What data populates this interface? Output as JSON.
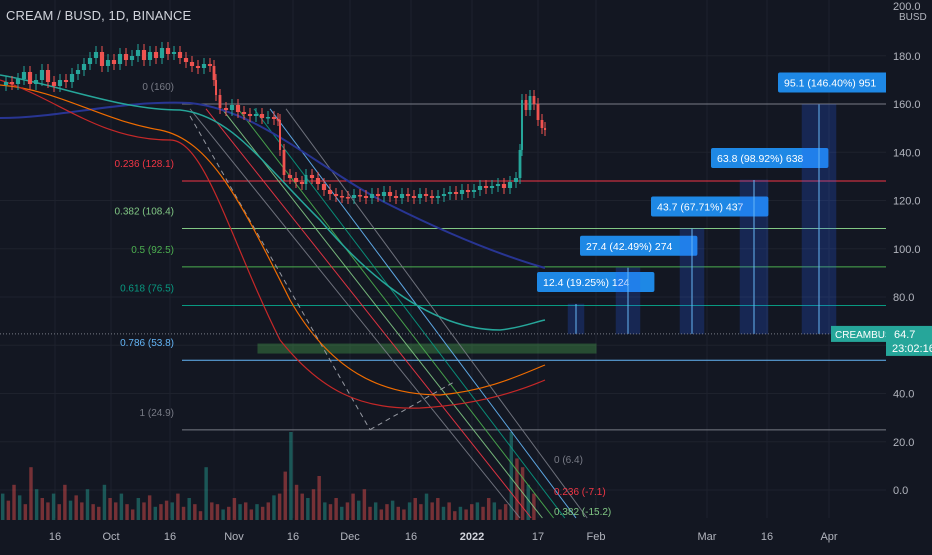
{
  "header": {
    "symbol_title": "CREAM / BUSD, 1D, BINANCE",
    "currency": "BUSD"
  },
  "chart_data": {
    "type": "candlestick",
    "title": "CREAM / BUSD, 1D, BINANCE",
    "symbol": "CREAMBUSD",
    "last_price": "64.7",
    "countdown": "23:02:16",
    "y_ticks": [
      "0.0",
      "20.0",
      "40.0",
      "60.0",
      "80.0",
      "100.0",
      "120.0",
      "140.0",
      "160.0",
      "180.0"
    ],
    "y_top_partial": "200.0",
    "ylim": [
      -3,
      203
    ],
    "x_ticks": [
      "16",
      "Oct",
      "16",
      "Nov",
      "16",
      "Dec",
      "16",
      "2022",
      "17",
      "Feb",
      "Mar",
      "16",
      "Apr"
    ],
    "fib_retracement": [
      {
        "label": "0 (160)",
        "value": 160,
        "color": "#787b86"
      },
      {
        "label": "0.236 (128.1)",
        "value": 128.1,
        "color": "#f23645"
      },
      {
        "label": "0.382 (108.4)",
        "value": 108.4,
        "color": "#81c784"
      },
      {
        "label": "0.5 (92.5)",
        "value": 92.5,
        "color": "#4caf50"
      },
      {
        "label": "0.618 (76.5)",
        "value": 76.5,
        "color": "#089981"
      },
      {
        "label": "0.786 (53.8)",
        "value": 53.8,
        "color": "#64b5f6"
      },
      {
        "label": "1 (24.9)",
        "value": 24.9,
        "color": "#787b86"
      }
    ],
    "fib_channel_labels": [
      {
        "label": "0 (6.4)",
        "color": "#787b86"
      },
      {
        "label": "0.236 (-7.1)",
        "color": "#f23645"
      },
      {
        "label": "0.382 (-15.2)",
        "color": "#81c784"
      }
    ],
    "targets": [
      {
        "label": "12.4 (19.25%) 124",
        "base": 64.7,
        "top": 77.1
      },
      {
        "label": "27.4 (42.49%) 274",
        "base": 64.7,
        "top": 92.1
      },
      {
        "label": "43.7 (67.71%) 437",
        "base": 64.7,
        "top": 108.4
      },
      {
        "label": "63.8 (98.92%) 638",
        "base": 64.7,
        "top": 128.5
      },
      {
        "label": "95.1 (146.40%) 951",
        "base": 64.7,
        "top": 159.8
      }
    ],
    "price_series": [
      [
        0,
        85
      ],
      [
        6,
        82
      ],
      [
        12,
        84
      ],
      [
        18,
        79
      ],
      [
        24,
        72
      ],
      [
        30,
        84
      ],
      [
        36,
        80
      ],
      [
        42,
        70
      ],
      [
        48,
        82
      ],
      [
        54,
        86
      ],
      [
        60,
        80
      ],
      [
        66,
        82
      ],
      [
        72,
        74
      ],
      [
        78,
        70
      ],
      [
        84,
        64
      ],
      [
        90,
        58
      ],
      [
        96,
        52
      ],
      [
        102,
        66
      ],
      [
        108,
        60
      ],
      [
        114,
        64
      ],
      [
        120,
        54
      ],
      [
        126,
        60
      ],
      [
        132,
        56
      ],
      [
        138,
        50
      ],
      [
        144,
        60
      ],
      [
        150,
        52
      ],
      [
        156,
        58
      ],
      [
        162,
        48
      ],
      [
        168,
        54
      ],
      [
        174,
        52
      ],
      [
        180,
        58
      ],
      [
        186,
        62
      ],
      [
        192,
        66
      ],
      [
        198,
        68
      ],
      [
        204,
        64
      ],
      [
        210,
        66
      ],
      [
        214,
        80
      ],
      [
        216,
        95
      ],
      [
        220,
        108
      ],
      [
        226,
        110
      ],
      [
        232,
        105
      ],
      [
        238,
        112
      ],
      [
        244,
        114
      ],
      [
        250,
        116
      ],
      [
        256,
        114
      ],
      [
        262,
        118
      ],
      [
        268,
        117
      ],
      [
        274,
        119
      ],
      [
        278,
        120
      ],
      [
        280,
        150
      ],
      [
        284,
        175
      ],
      [
        290,
        178
      ],
      [
        296,
        182
      ],
      [
        302,
        184
      ],
      [
        306,
        175
      ],
      [
        312,
        178
      ],
      [
        318,
        184
      ],
      [
        324,
        190
      ],
      [
        330,
        194
      ],
      [
        336,
        196
      ],
      [
        342,
        197
      ],
      [
        348,
        198
      ],
      [
        354,
        195
      ],
      [
        360,
        196
      ],
      [
        366,
        198
      ],
      [
        372,
        194
      ],
      [
        378,
        196
      ],
      [
        384,
        192
      ],
      [
        390,
        196
      ],
      [
        396,
        198
      ],
      [
        402,
        194
      ],
      [
        408,
        196
      ],
      [
        414,
        198
      ],
      [
        420,
        194
      ],
      [
        426,
        196
      ],
      [
        432,
        198
      ],
      [
        438,
        196
      ],
      [
        444,
        194
      ],
      [
        450,
        192
      ],
      [
        456,
        194
      ],
      [
        462,
        190
      ],
      [
        468,
        192
      ],
      [
        474,
        190
      ],
      [
        480,
        186
      ],
      [
        486,
        188
      ],
      [
        492,
        186
      ],
      [
        498,
        184
      ],
      [
        504,
        188
      ],
      [
        510,
        182
      ],
      [
        516,
        178
      ],
      [
        520,
        150
      ],
      [
        522,
        100
      ],
      [
        526,
        110
      ],
      [
        530,
        96
      ],
      [
        534,
        104
      ],
      [
        538,
        120
      ],
      [
        542,
        128
      ],
      [
        545,
        130
      ]
    ],
    "volume_bars_relative": [
      30,
      22,
      40,
      28,
      18,
      60,
      35,
      25,
      20,
      30,
      18,
      40,
      22,
      28,
      20,
      35,
      18,
      15,
      40,
      25,
      20,
      30,
      18,
      12,
      25,
      20,
      28,
      15,
      18,
      22,
      20,
      30,
      15,
      25,
      18,
      10,
      60,
      20,
      18,
      12,
      15,
      25,
      18,
      20,
      12,
      18,
      15,
      20,
      28,
      30,
      55,
      100,
      40,
      30,
      25,
      35,
      50,
      20,
      18,
      25,
      15,
      20,
      30,
      22,
      35,
      15,
      20,
      12,
      18,
      22,
      15,
      12,
      20,
      25,
      18,
      30,
      20,
      25,
      15,
      20,
      10,
      15,
      12,
      18,
      20,
      15,
      25,
      20,
      12,
      18,
      100,
      70,
      60,
      40,
      30
    ]
  },
  "colors": {
    "background": "#131722",
    "up": "#26a69a",
    "down": "#ef5350",
    "grid": "#1e222d",
    "axis_text": "#b2b5be",
    "price_label_bg": "#26a69a",
    "target_box": "#2962ff",
    "target_label_bg": "#1e88e5"
  }
}
